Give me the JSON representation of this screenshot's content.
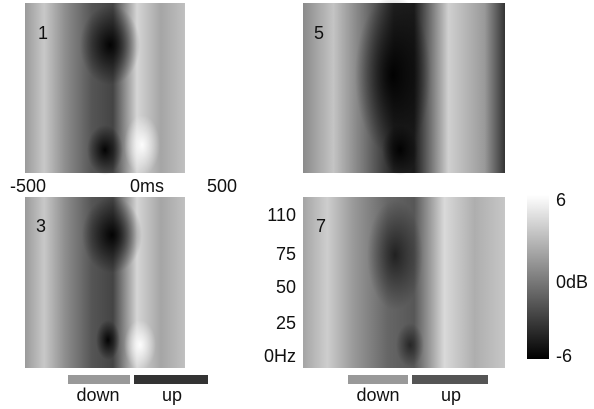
{
  "panels": [
    {
      "label": "1"
    },
    {
      "label": "5"
    },
    {
      "label": "3"
    },
    {
      "label": "7"
    }
  ],
  "time_axis": {
    "start": "-500",
    "middle": "0ms",
    "end": "500"
  },
  "frequency_axis": {
    "labels": [
      "110",
      "75",
      "50",
      "25",
      "0Hz"
    ]
  },
  "colorbar": {
    "top": "6",
    "middle": "0dB",
    "bottom": "-6"
  },
  "stimulus_legend": {
    "left": {
      "first": "down",
      "second": "up"
    },
    "right": {
      "first": "down",
      "second": "up"
    }
  }
}
